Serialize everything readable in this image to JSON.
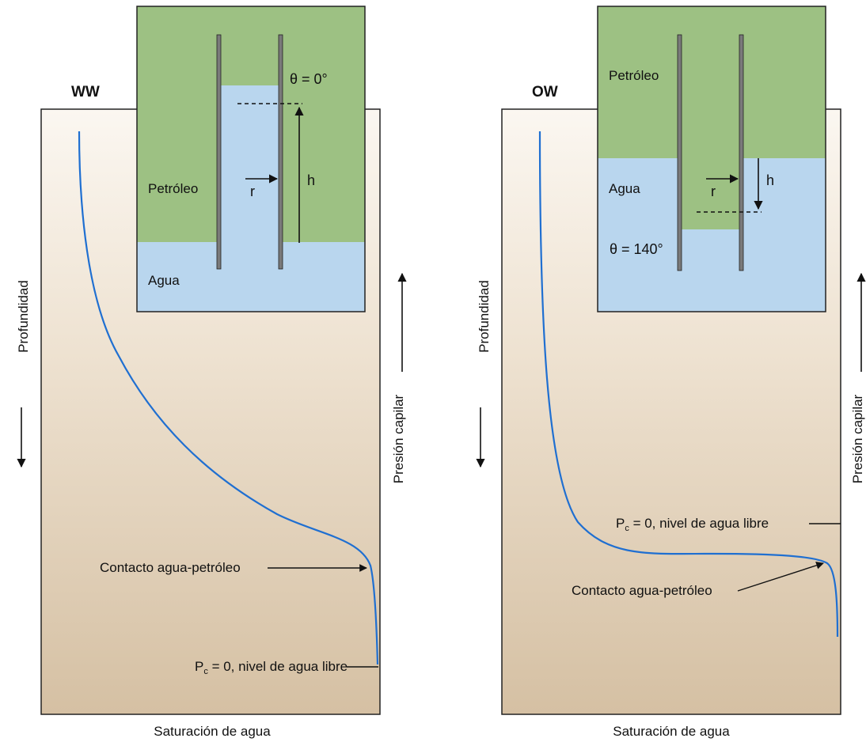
{
  "panels": [
    {
      "id": "ww",
      "title": "WW",
      "inset": {
        "oil_label": "Petróleo",
        "water_label": "Agua",
        "angle_label": "θ = 0°",
        "radius_label": "r",
        "height_label": "h"
      },
      "depth_label": "Profundidad",
      "pressure_label": "Presión capilar",
      "xlabel": "Saturación de agua",
      "contact_label": "Contacto agua-petróleo",
      "fwl_label_prefix": "P",
      "fwl_label_sub": "c",
      "fwl_label_rest": " = 0, nivel de agua libre"
    },
    {
      "id": "ow",
      "title": "OW",
      "inset": {
        "oil_label": "Petróleo",
        "water_label": "Agua",
        "angle_label": "θ = 140°",
        "radius_label": "r",
        "height_label": "h"
      },
      "depth_label": "Profundidad",
      "pressure_label": "Presión capilar",
      "xlabel": "Saturación de agua",
      "contact_label": "Contacto agua-petróleo",
      "fwl_label_prefix": "P",
      "fwl_label_sub": "c",
      "fwl_label_rest": " = 0, nivel de agua libre"
    }
  ],
  "colors": {
    "oil": "#9dc183",
    "water": "#b9d6ee",
    "curve": "#1f6fd1",
    "rock_top": "#fbf7f1",
    "rock_bottom": "#d5c0a3",
    "outline": "#222222",
    "tube": "#7a7a7a"
  }
}
